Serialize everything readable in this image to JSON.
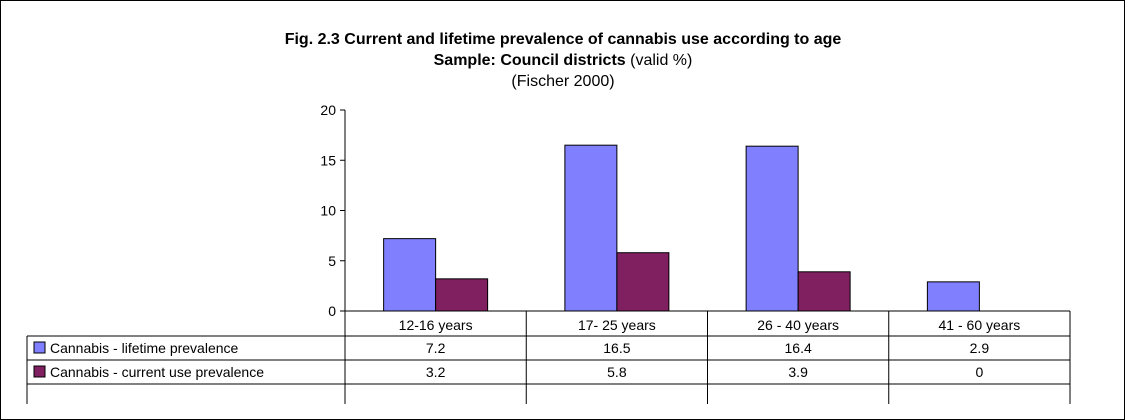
{
  "chart_data": {
    "type": "bar",
    "title": "Fig. 2.3 Current and lifetime prevalence of cannabis use according to age",
    "subtitle_bold": "Sample: Council districts",
    "subtitle_rest": " (valid %)",
    "source": "(Fischer 2000)",
    "categories": [
      "12-16 years",
      "17- 25 years",
      "26 - 40 years",
      "41 - 60 years"
    ],
    "series": [
      {
        "name": "Cannabis - lifetime prevalence",
        "color": "#8080ff",
        "values": [
          7.2,
          16.5,
          16.4,
          2.9
        ],
        "labels": [
          "7.2",
          "16.5",
          "16.4",
          "2.9"
        ]
      },
      {
        "name": "Cannabis - current use prevalence",
        "color": "#802060",
        "values": [
          3.2,
          5.8,
          3.9,
          0
        ],
        "labels": [
          "3.2",
          "5.8",
          "3.9",
          "0"
        ]
      }
    ],
    "ylim": [
      0,
      20
    ],
    "yticks": [
      0,
      5,
      10,
      15,
      20
    ],
    "legend": "data-table",
    "grid": false
  }
}
